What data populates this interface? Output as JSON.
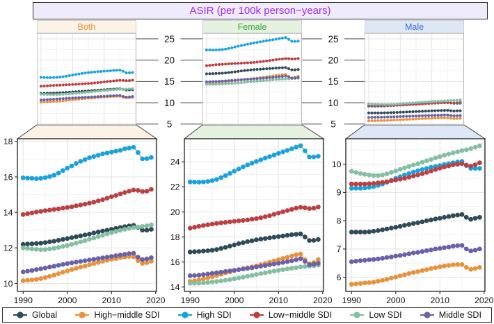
{
  "title": {
    "text": "ASIR (per 100k person−years)",
    "bg": "#EFEBFB",
    "fg": "#A62BE8"
  },
  "facets": [
    {
      "label": "Both",
      "bg": "#FCF3E7",
      "fg": "#F0913B"
    },
    {
      "label": "Female",
      "bg": "#E4F2DF",
      "fg": "#3FA73F"
    },
    {
      "label": "Male",
      "bg": "#DEE7F6",
      "fg": "#3C6FD6"
    }
  ],
  "legend": [
    {
      "label": "Global",
      "color": "#2F4A58"
    },
    {
      "label": "High−middle SDI",
      "color": "#E8923E"
    },
    {
      "label": "High SDI",
      "color": "#1AA2DC"
    },
    {
      "label": "Low−middle SDI",
      "color": "#BC4043"
    },
    {
      "label": "Low SDI",
      "color": "#84BFA3"
    },
    {
      "label": "Middle SDI",
      "color": "#6A61A9"
    }
  ],
  "chart_data": {
    "type": "scatter",
    "marker": "point-with-line",
    "title": "ASIR (per 100k person−years)",
    "xlabel": "",
    "ylabel": "",
    "legend_position": "bottom",
    "grid": "major+minor",
    "x": [
      1990,
      1991,
      1992,
      1993,
      1994,
      1995,
      1996,
      1997,
      1998,
      1999,
      2000,
      2001,
      2002,
      2003,
      2004,
      2005,
      2006,
      2007,
      2008,
      2009,
      2010,
      2011,
      2012,
      2013,
      2014,
      2015,
      2016,
      2017,
      2018,
      2019
    ],
    "xticks": [
      1990,
      2000,
      2010,
      2020
    ],
    "xlim": [
      1988.7,
      2020.2
    ],
    "overview_axis": {
      "ylim": [
        4.8,
        26.3
      ],
      "yticks": [
        5,
        10,
        15,
        20,
        25
      ]
    },
    "panels": [
      {
        "facet": "Both",
        "ylim": [
          9.55,
          18.15
        ],
        "yticks": [
          10,
          12,
          14,
          16,
          18
        ],
        "series": [
          {
            "name": "Global",
            "values": [
              12.2,
              12.22,
              12.23,
              12.25,
              12.27,
              12.3,
              12.34,
              12.38,
              12.43,
              12.48,
              12.53,
              12.58,
              12.63,
              12.68,
              12.73,
              12.78,
              12.84,
              12.9,
              12.95,
              13.0,
              13.05,
              13.1,
              13.15,
              13.2,
              13.24,
              13.27,
              13.15,
              13.0,
              13.0,
              13.05
            ]
          },
          {
            "name": "High−middle SDI",
            "values": [
              10.15,
              10.18,
              10.2,
              10.23,
              10.27,
              10.33,
              10.4,
              10.47,
              10.55,
              10.63,
              10.7,
              10.78,
              10.85,
              10.92,
              10.98,
              11.05,
              11.12,
              11.18,
              11.25,
              11.3,
              11.36,
              11.4,
              11.45,
              11.48,
              11.52,
              11.5,
              11.28,
              11.13,
              11.17,
              11.25
            ]
          },
          {
            "name": "High SDI",
            "values": [
              15.95,
              15.93,
              15.92,
              15.9,
              15.92,
              15.96,
              16.02,
              16.1,
              16.22,
              16.36,
              16.5,
              16.62,
              16.76,
              16.88,
              16.98,
              17.08,
              17.15,
              17.22,
              17.3,
              17.35,
              17.4,
              17.45,
              17.5,
              17.58,
              17.63,
              17.67,
              17.38,
              17.02,
              17.03,
              17.1
            ]
          },
          {
            "name": "Low−middle SDI",
            "values": [
              13.88,
              13.93,
              13.97,
              14.02,
              14.06,
              14.1,
              14.13,
              14.17,
              14.2,
              14.24,
              14.28,
              14.32,
              14.37,
              14.42,
              14.47,
              14.52,
              14.58,
              14.65,
              14.72,
              14.8,
              14.88,
              14.96,
              15.04,
              15.12,
              15.2,
              15.26,
              15.24,
              15.18,
              15.2,
              15.3
            ]
          },
          {
            "name": "Low SDI",
            "values": [
              12.0,
              11.97,
              11.94,
              11.92,
              11.9,
              11.91,
              11.94,
              11.98,
              12.03,
              12.08,
              12.14,
              12.2,
              12.27,
              12.34,
              12.41,
              12.49,
              12.56,
              12.64,
              12.71,
              12.79,
              12.86,
              12.93,
              12.99,
              13.05,
              13.1,
              13.15,
              13.18,
              13.21,
              13.25,
              13.3
            ]
          },
          {
            "name": "Middle SDI",
            "values": [
              10.65,
              10.69,
              10.73,
              10.78,
              10.82,
              10.87,
              10.92,
              10.97,
              11.02,
              11.07,
              11.12,
              11.16,
              11.2,
              11.24,
              11.28,
              11.32,
              11.36,
              11.4,
              11.44,
              11.48,
              11.52,
              11.56,
              11.6,
              11.64,
              11.68,
              11.7,
              11.48,
              11.34,
              11.38,
              11.45
            ]
          }
        ]
      },
      {
        "facet": "Female",
        "ylim": [
          13.65,
          25.85
        ],
        "yticks": [
          14,
          16,
          18,
          20,
          22,
          24
        ],
        "series": [
          {
            "name": "Global",
            "values": [
              16.8,
              16.82,
              16.84,
              16.87,
              16.9,
              16.94,
              17.0,
              17.08,
              17.17,
              17.27,
              17.37,
              17.47,
              17.55,
              17.63,
              17.7,
              17.77,
              17.83,
              17.88,
              17.93,
              17.98,
              18.03,
              18.08,
              18.13,
              18.18,
              18.22,
              18.25,
              18.0,
              17.72,
              17.73,
              17.8
            ]
          },
          {
            "name": "High−middle SDI",
            "values": [
              14.45,
              14.5,
              14.56,
              14.64,
              14.73,
              14.82,
              14.92,
              15.02,
              15.12,
              15.21,
              15.3,
              15.39,
              15.47,
              15.54,
              15.61,
              15.69,
              15.78,
              15.88,
              15.98,
              16.08,
              16.18,
              16.28,
              16.38,
              16.48,
              16.58,
              16.65,
              16.18,
              15.85,
              15.95,
              16.2
            ]
          },
          {
            "name": "High SDI",
            "values": [
              22.4,
              22.39,
              22.38,
              22.4,
              22.44,
              22.5,
              22.6,
              22.74,
              22.9,
              23.08,
              23.26,
              23.43,
              23.6,
              23.76,
              23.9,
              24.04,
              24.17,
              24.3,
              24.43,
              24.55,
              24.68,
              24.8,
              24.92,
              25.05,
              25.18,
              25.3,
              24.88,
              24.4,
              24.4,
              24.45
            ]
          },
          {
            "name": "Low−middle SDI",
            "values": [
              18.7,
              18.78,
              18.85,
              18.92,
              18.98,
              19.03,
              19.08,
              19.13,
              19.17,
              19.21,
              19.25,
              19.29,
              19.33,
              19.37,
              19.42,
              19.47,
              19.54,
              19.62,
              19.71,
              19.81,
              19.91,
              20.01,
              20.11,
              20.21,
              20.3,
              20.38,
              20.33,
              20.27,
              20.3,
              20.4
            ]
          },
          {
            "name": "Low SDI",
            "values": [
              14.3,
              14.3,
              14.31,
              14.33,
              14.36,
              14.4,
              14.44,
              14.49,
              14.54,
              14.6,
              14.66,
              14.72,
              14.79,
              14.86,
              14.93,
              15.0,
              15.07,
              15.14,
              15.21,
              15.27,
              15.33,
              15.39,
              15.45,
              15.5,
              15.55,
              15.6,
              15.64,
              15.67,
              15.7,
              15.75
            ]
          },
          {
            "name": "Middle SDI",
            "values": [
              14.9,
              14.92,
              14.95,
              14.99,
              15.04,
              15.09,
              15.14,
              15.19,
              15.24,
              15.29,
              15.34,
              15.39,
              15.44,
              15.49,
              15.54,
              15.6,
              15.66,
              15.72,
              15.78,
              15.84,
              15.9,
              15.96,
              16.03,
              16.1,
              16.18,
              16.27,
              16.05,
              15.78,
              15.83,
              15.9
            ]
          }
        ]
      },
      {
        "facet": "Male",
        "ylim": [
          5.5,
          10.9
        ],
        "yticks": [
          6,
          7,
          8,
          9,
          10
        ],
        "series": [
          {
            "name": "Global",
            "values": [
              7.6,
              7.6,
              7.6,
              7.6,
              7.61,
              7.63,
              7.65,
              7.68,
              7.71,
              7.74,
              7.77,
              7.8,
              7.84,
              7.87,
              7.9,
              7.93,
              7.96,
              8.0,
              8.03,
              8.06,
              8.09,
              8.12,
              8.15,
              8.18,
              8.2,
              8.22,
              8.12,
              8.05,
              8.09,
              8.12
            ]
          },
          {
            "name": "High−middle SDI",
            "values": [
              5.75,
              5.77,
              5.78,
              5.8,
              5.81,
              5.83,
              5.86,
              5.89,
              5.93,
              5.97,
              6.01,
              6.05,
              6.09,
              6.13,
              6.17,
              6.2,
              6.24,
              6.27,
              6.31,
              6.34,
              6.37,
              6.4,
              6.42,
              6.44,
              6.45,
              6.45,
              6.35,
              6.28,
              6.31,
              6.35
            ]
          },
          {
            "name": "High SDI",
            "values": [
              9.15,
              9.15,
              9.15,
              9.16,
              9.18,
              9.21,
              9.25,
              9.3,
              9.36,
              9.43,
              9.5,
              9.56,
              9.62,
              9.67,
              9.72,
              9.77,
              9.81,
              9.85,
              9.89,
              9.92,
              9.95,
              9.99,
              10.02,
              10.05,
              10.08,
              10.1,
              9.95,
              9.85,
              9.85,
              9.85
            ]
          },
          {
            "name": "Low−middle SDI",
            "values": [
              9.3,
              9.3,
              9.3,
              9.3,
              9.31,
              9.32,
              9.34,
              9.36,
              9.38,
              9.41,
              9.44,
              9.47,
              9.5,
              9.54,
              9.58,
              9.62,
              9.66,
              9.71,
              9.76,
              9.81,
              9.86,
              9.9,
              9.94,
              9.98,
              10.0,
              10.02,
              9.97,
              9.93,
              9.98,
              10.05
            ]
          },
          {
            "name": "Low SDI",
            "values": [
              9.75,
              9.71,
              9.67,
              9.64,
              9.62,
              9.6,
              9.6,
              9.62,
              9.66,
              9.71,
              9.76,
              9.82,
              9.87,
              9.92,
              9.97,
              10.02,
              10.07,
              10.12,
              10.17,
              10.22,
              10.27,
              10.32,
              10.36,
              10.4,
              10.44,
              10.48,
              10.51,
              10.55,
              10.6,
              10.65
            ]
          },
          {
            "name": "Middle SDI",
            "values": [
              6.55,
              6.57,
              6.59,
              6.6,
              6.62,
              6.63,
              6.65,
              6.67,
              6.7,
              6.72,
              6.75,
              6.77,
              6.8,
              6.83,
              6.86,
              6.88,
              6.91,
              6.94,
              6.97,
              7.0,
              7.02,
              7.05,
              7.07,
              7.1,
              7.12,
              7.13,
              7.0,
              6.93,
              6.96,
              7.0
            ]
          }
        ]
      }
    ]
  }
}
